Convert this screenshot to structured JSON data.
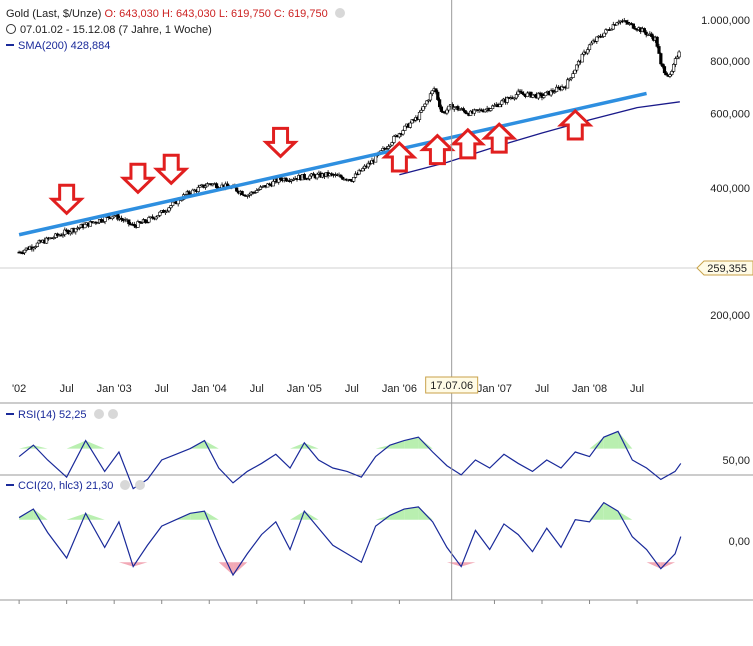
{
  "header": {
    "instrument": "Gold (Last, $/Unze)",
    "open": "O: 643,030",
    "high": "H: 643,030",
    "low": "L: 619,750",
    "close": "C: 619,750",
    "period": "07.01.02 - 15.12.08 (7 Jahre, 1 Woche)",
    "sma_label": "SMA(200)",
    "sma_value": "428,884"
  },
  "rsi": {
    "label": "RSI(14)",
    "value": "52,25"
  },
  "cci": {
    "label": "CCI(20, hlc3)",
    "value": "21,30"
  },
  "cursor_date": "17.07.06",
  "current_price": "259,355",
  "colors": {
    "trendline": "#2e8fe0",
    "sma": "#1a1a8a",
    "arrow": "#e11f1f",
    "overbought": "#b9efb0",
    "oversold": "#f2a9b6",
    "indicator": "#1a2a9a"
  },
  "chart_data": [
    {
      "type": "candlestick",
      "title": "Gold (Last, $/Unze)",
      "scale": "log",
      "y_ticks": [
        "1.000,000",
        "800,000",
        "600,000",
        "400,000",
        "200,000"
      ],
      "y_tick_values": [
        1000,
        800,
        600,
        400,
        200
      ],
      "x_ticks": [
        "'02",
        "Jul",
        "Jan '03",
        "Jul",
        "Jan '04",
        "Jul",
        "Jan '05",
        "Jul",
        "Jan '06",
        "Jan '07",
        "Jul",
        "Jan '08",
        "Jul"
      ],
      "ylim": [
        165,
        1100
      ],
      "price_series": {
        "dates": [
          2002.0,
          2002.5,
          2003.0,
          2003.2,
          2003.35,
          2003.5,
          2003.75,
          2004.0,
          2004.25,
          2004.4,
          2004.75,
          2005.0,
          2005.25,
          2005.5,
          2005.75,
          2006.0,
          2006.2,
          2006.37,
          2006.45,
          2006.55,
          2006.75,
          2007.0,
          2007.25,
          2007.5,
          2007.75,
          2008.0,
          2008.2,
          2008.3,
          2008.5,
          2008.7,
          2008.75,
          2008.85,
          2008.95
        ],
        "close": [
          282,
          315,
          345,
          325,
          335,
          350,
          385,
          410,
          400,
          385,
          420,
          425,
          430,
          420,
          470,
          540,
          590,
          690,
          600,
          625,
          600,
          625,
          670,
          660,
          700,
          870,
          950,
          1000,
          960,
          900,
          780,
          730,
          860
        ]
      },
      "series": [
        {
          "name": "SMA(200)",
          "x": [
            2006.0,
            2006.5,
            2007.0,
            2007.5,
            2008.0,
            2008.5,
            2008.95
          ],
          "values": [
            430,
            460,
            500,
            540,
            580,
            620,
            640
          ]
        },
        {
          "name": "Trendlinie",
          "x": [
            2002.0,
            2008.6
          ],
          "values": [
            310,
            670
          ]
        }
      ],
      "annotations": {
        "down_arrows": [
          2002.5,
          2003.25,
          2003.6,
          2004.75
        ],
        "up_arrows": [
          2006.0,
          2006.4,
          2006.72,
          2007.05,
          2007.85
        ]
      }
    },
    {
      "type": "line",
      "title": "RSI(14)",
      "y_ticks": [
        "50,00"
      ],
      "ylim": [
        0,
        100
      ],
      "x": [
        2002.0,
        2002.15,
        2002.3,
        2002.5,
        2002.7,
        2002.9,
        2003.05,
        2003.2,
        2003.35,
        2003.5,
        2003.65,
        2003.8,
        2003.95,
        2004.1,
        2004.25,
        2004.4,
        2004.55,
        2004.7,
        2004.85,
        2005.0,
        2005.15,
        2005.3,
        2005.45,
        2005.6,
        2005.75,
        2005.9,
        2006.05,
        2006.2,
        2006.35,
        2006.5,
        2006.65,
        2006.8,
        2006.95,
        2007.1,
        2007.25,
        2007.4,
        2007.55,
        2007.7,
        2007.85,
        2008.0,
        2008.15,
        2008.3,
        2008.45,
        2008.6,
        2008.75,
        2008.9,
        2008.96
      ],
      "values": [
        58,
        68,
        55,
        40,
        72,
        45,
        62,
        30,
        38,
        55,
        60,
        65,
        72,
        48,
        35,
        45,
        52,
        60,
        48,
        70,
        55,
        48,
        45,
        40,
        58,
        68,
        72,
        75,
        62,
        50,
        42,
        55,
        48,
        60,
        52,
        45,
        55,
        48,
        62,
        58,
        75,
        80,
        55,
        48,
        38,
        45,
        52
      ]
    },
    {
      "type": "line",
      "title": "CCI(20, hlc3)",
      "y_ticks": [
        "0,00"
      ],
      "ylim": [
        -250,
        250
      ],
      "x": [
        2002.0,
        2002.15,
        2002.3,
        2002.5,
        2002.7,
        2002.9,
        2003.05,
        2003.2,
        2003.35,
        2003.5,
        2003.65,
        2003.8,
        2003.95,
        2004.1,
        2004.25,
        2004.4,
        2004.55,
        2004.7,
        2004.85,
        2005.0,
        2005.15,
        2005.3,
        2005.45,
        2005.6,
        2005.75,
        2005.9,
        2006.05,
        2006.2,
        2006.35,
        2006.5,
        2006.65,
        2006.8,
        2006.95,
        2007.1,
        2007.25,
        2007.4,
        2007.55,
        2007.7,
        2007.85,
        2008.0,
        2008.15,
        2008.3,
        2008.45,
        2008.6,
        2008.75,
        2008.9,
        2008.96
      ],
      "values": [
        110,
        150,
        40,
        -80,
        130,
        -30,
        90,
        -120,
        -20,
        70,
        100,
        130,
        140,
        -20,
        -160,
        -60,
        30,
        90,
        -40,
        140,
        60,
        -20,
        -60,
        -100,
        70,
        120,
        150,
        160,
        90,
        -30,
        -120,
        50,
        -40,
        80,
        30,
        -50,
        60,
        -30,
        100,
        90,
        180,
        140,
        20,
        -40,
        -130,
        -60,
        21
      ]
    }
  ]
}
